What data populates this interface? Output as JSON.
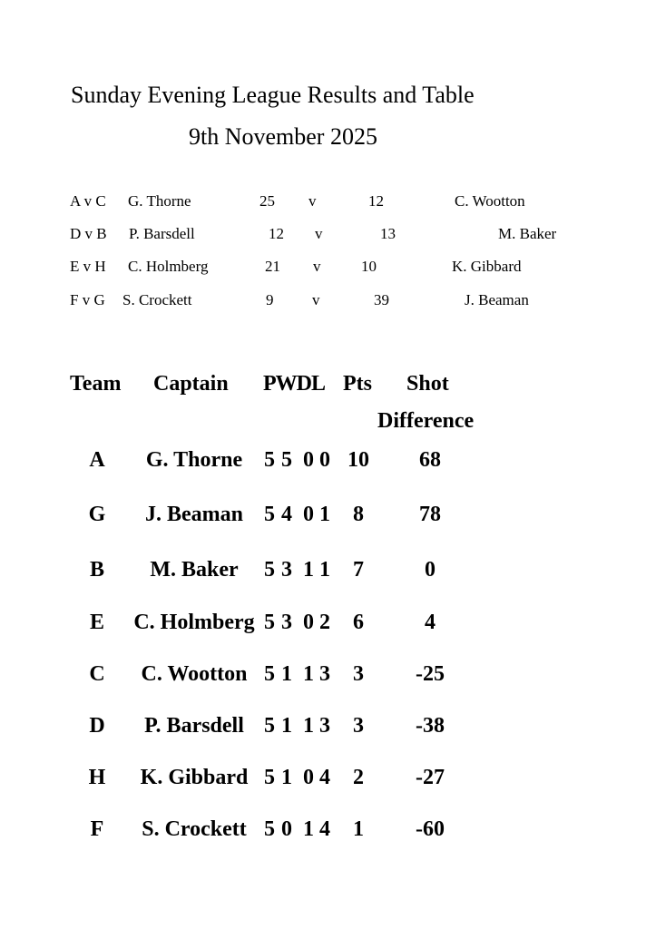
{
  "title": "Sunday Evening League Results and Table",
  "date": "9th November 2025",
  "results": [
    {
      "fixture": "A v C",
      "home_captain": "G. Thorne",
      "home_score": "25",
      "v": "v",
      "away_score": "12",
      "away_captain": "C. Wootton"
    },
    {
      "fixture": "D v B",
      "home_captain": "P. Barsdell",
      "home_score": "12",
      "v": "v",
      "away_score": "13",
      "away_captain": "M. Baker"
    },
    {
      "fixture": "E v H",
      "home_captain": "C. Holmberg",
      "home_score": "21",
      "v": "v",
      "away_score": "10",
      "away_captain": "K. Gibbard"
    },
    {
      "fixture": "F v G",
      "home_captain": "S. Crockett",
      "home_score": "9",
      "v": "v",
      "away_score": "39",
      "away_captain": "J. Beaman"
    }
  ],
  "table": {
    "headers": {
      "team": "Team",
      "captain": "Captain",
      "pwdl": "PWDL",
      "pts": "Pts",
      "shot": "Shot",
      "difference": "Difference"
    },
    "rows": [
      {
        "team": "A",
        "captain": "G. Thorne",
        "p": "5",
        "w": "5",
        "d": "0",
        "l": "0",
        "pts": "10",
        "sd": "68"
      },
      {
        "team": "G",
        "captain": "J. Beaman",
        "p": "5",
        "w": "4",
        "d": "0",
        "l": "1",
        "pts": "8",
        "sd": "78"
      },
      {
        "team": "B",
        "captain": "M. Baker",
        "p": "5",
        "w": "3",
        "d": "1",
        "l": "1",
        "pts": "7",
        "sd": "0"
      },
      {
        "team": "E",
        "captain": "C. Holmberg",
        "p": "5",
        "w": "3",
        "d": "0",
        "l": "2",
        "pts": "6",
        "sd": "4"
      },
      {
        "team": "C",
        "captain": "C. Wootton",
        "p": "5",
        "w": "1",
        "d": "1",
        "l": "3",
        "pts": "3",
        "sd": "-25"
      },
      {
        "team": "D",
        "captain": "P. Barsdell",
        "p": "5",
        "w": "1",
        "d": "1",
        "l": "3",
        "pts": "3",
        "sd": "-38"
      },
      {
        "team": "H",
        "captain": "K. Gibbard",
        "p": "5",
        "w": "1",
        "d": "0",
        "l": "4",
        "pts": "2",
        "sd": "-27"
      },
      {
        "team": "F",
        "captain": "S. Crockett",
        "p": "5",
        "w": "0",
        "d": "1",
        "l": "4",
        "pts": "1",
        "sd": "-60"
      }
    ]
  }
}
